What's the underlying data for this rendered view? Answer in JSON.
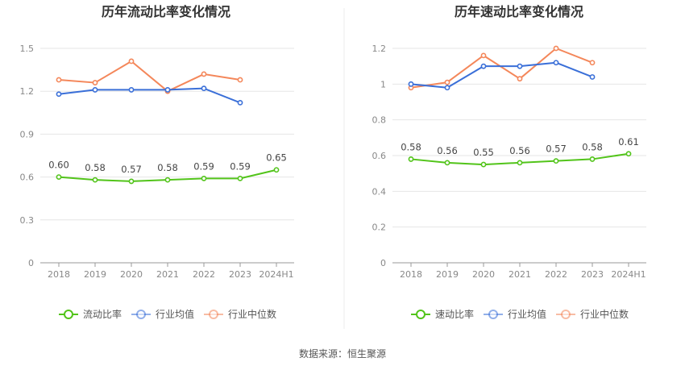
{
  "colors": {
    "green": "#52c41a",
    "blue": "#3a6fd8",
    "orange": "#f4875a",
    "grid": "#e6e6e6",
    "axis": "#999999"
  },
  "source_text": "数据来源：恒生聚源",
  "chart_data": [
    {
      "type": "line",
      "title": "历年流动比率变化情况",
      "categories": [
        "2018",
        "2019",
        "2020",
        "2021",
        "2022",
        "2023",
        "2024H1"
      ],
      "yticks": [
        "0",
        "0.3",
        "0.6",
        "0.9",
        "1.2",
        "1.5"
      ],
      "ylim": [
        0,
        1.5
      ],
      "series": [
        {
          "name": "流动比率",
          "color": "#52c41a",
          "values": [
            0.6,
            0.58,
            0.57,
            0.58,
            0.59,
            0.59,
            0.65
          ],
          "labels": [
            "0.60",
            "0.58",
            "0.57",
            "0.58",
            "0.59",
            "0.59",
            "0.65"
          ]
        },
        {
          "name": "行业均值",
          "color": "#3a6fd8",
          "values": [
            1.18,
            1.21,
            1.21,
            1.21,
            1.22,
            1.12,
            null
          ]
        },
        {
          "name": "行业中位数",
          "color": "#f4875a",
          "values": [
            1.28,
            1.26,
            1.41,
            1.2,
            1.32,
            1.28,
            null
          ]
        }
      ],
      "legend": "bottom",
      "grid": true
    },
    {
      "type": "line",
      "title": "历年速动比率变化情况",
      "categories": [
        "2018",
        "2019",
        "2020",
        "2021",
        "2022",
        "2023",
        "2024H1"
      ],
      "yticks": [
        "0",
        "0.2",
        "0.4",
        "0.6",
        "0.8",
        "1",
        "1.2"
      ],
      "ylim": [
        0,
        1.2
      ],
      "series": [
        {
          "name": "速动比率",
          "color": "#52c41a",
          "values": [
            0.58,
            0.56,
            0.55,
            0.56,
            0.57,
            0.58,
            0.61
          ],
          "labels": [
            "0.58",
            "0.56",
            "0.55",
            "0.56",
            "0.57",
            "0.58",
            "0.61"
          ]
        },
        {
          "name": "行业均值",
          "color": "#3a6fd8",
          "values": [
            1.0,
            0.98,
            1.1,
            1.1,
            1.12,
            1.04,
            null
          ]
        },
        {
          "name": "行业中位数",
          "color": "#f4875a",
          "values": [
            0.98,
            1.01,
            1.16,
            1.03,
            1.2,
            1.12,
            null
          ]
        }
      ],
      "legend": "bottom",
      "grid": true
    }
  ]
}
